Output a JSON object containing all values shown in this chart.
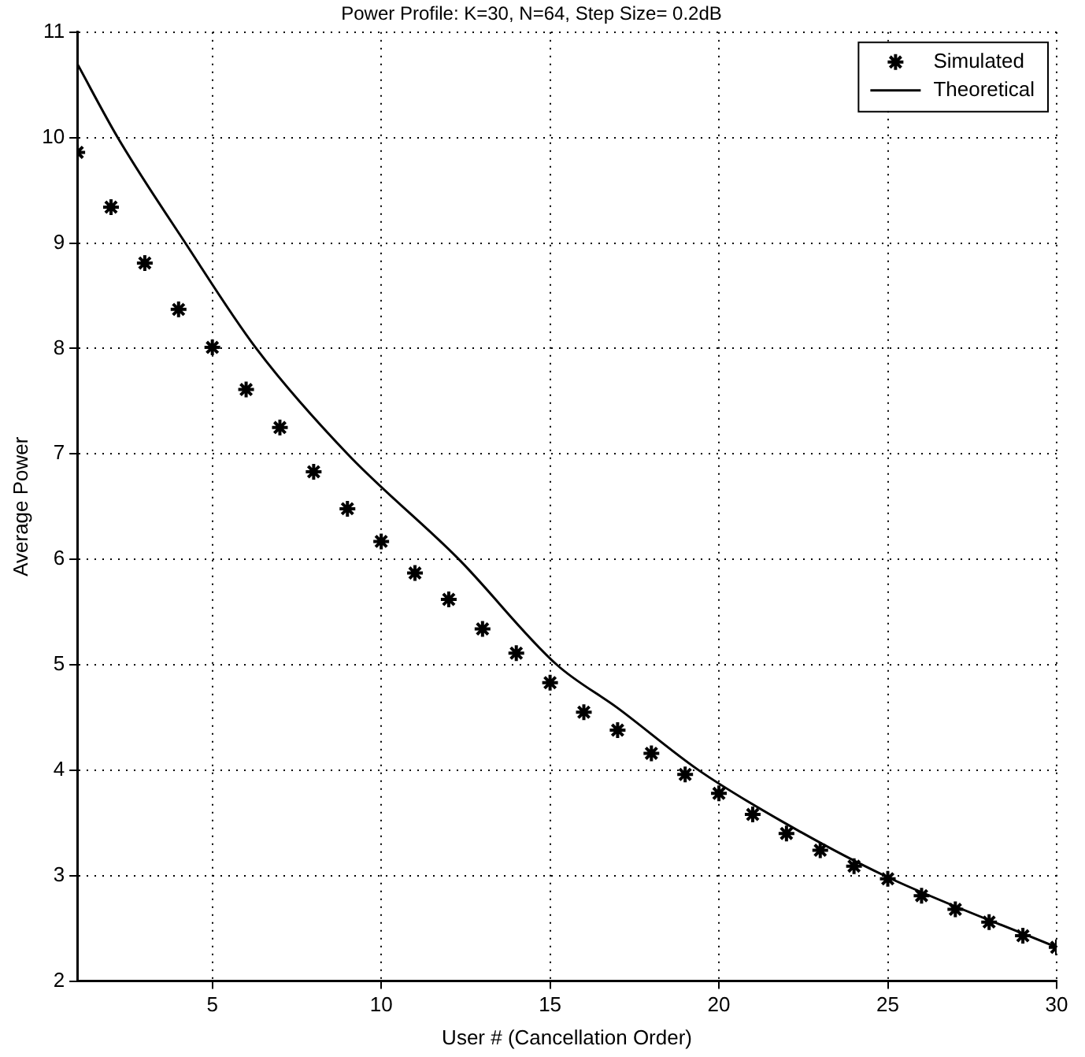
{
  "chart_data": {
    "type": "line",
    "title": "Power Profile: K=30, N=64, Step Size= 0.2dB",
    "xlabel": "User # (Cancellation Order)",
    "ylabel": "Average Power",
    "xlim": [
      1,
      30
    ],
    "xticks": [
      5,
      10,
      15,
      20,
      25,
      30
    ],
    "ylim": [
      2,
      11
    ],
    "yticks": [
      2,
      3,
      4,
      5,
      6,
      7,
      8,
      9,
      10,
      11
    ],
    "grid": true,
    "legend": "top right",
    "series": [
      {
        "name": "Simulated",
        "type": "scatter",
        "marker": "cross",
        "color": "#000000",
        "x": [
          1,
          2,
          3,
          4,
          5,
          6,
          7,
          8,
          9,
          10,
          11,
          12,
          13,
          14,
          15,
          16,
          17,
          18,
          19,
          20,
          21,
          22,
          23,
          24,
          25,
          26,
          27,
          28,
          29,
          30
        ],
        "values": [
          9.86,
          9.34,
          8.81,
          8.37,
          8.01,
          7.61,
          7.25,
          6.83,
          6.48,
          6.17,
          5.87,
          5.62,
          5.34,
          5.11,
          4.83,
          4.55,
          4.38,
          4.16,
          3.96,
          3.78,
          3.58,
          3.4,
          3.24,
          3.09,
          2.97,
          2.81,
          2.68,
          2.56,
          2.43,
          2.32
        ]
      },
      {
        "name": "Theoretical",
        "type": "line",
        "marker": "none",
        "line_style": "solid",
        "color": "#000000",
        "x": [
          1,
          2.2,
          4.2,
          6.3,
          9,
          12.3,
          15.2,
          17,
          19.4,
          22,
          24.9,
          30
        ],
        "values": [
          10.7,
          10,
          9,
          8,
          7,
          6,
          5,
          4.59,
          4,
          3.49,
          3,
          2.32
        ]
      }
    ]
  }
}
